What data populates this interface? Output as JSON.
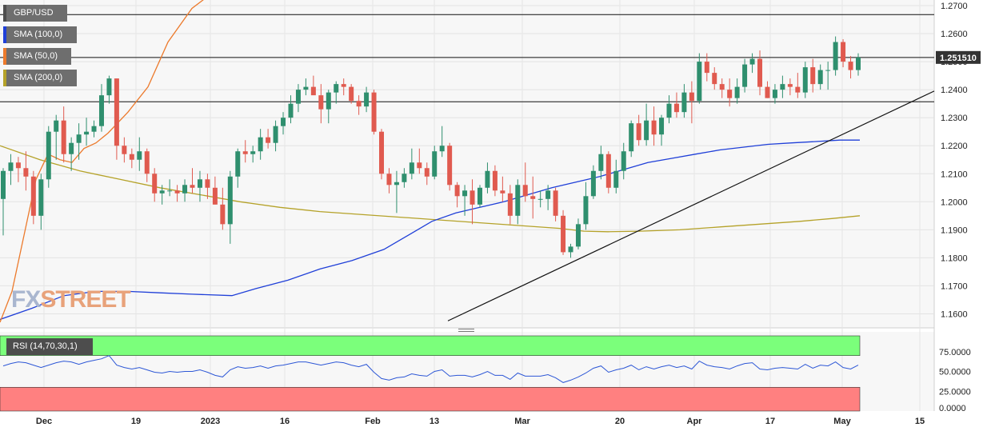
{
  "legend": {
    "symbol": "GBP/USD",
    "sma100": "SMA (100,0)",
    "sma50": "SMA (50,0)",
    "sma200": "SMA (200,0)",
    "rsi": "RSI (14,70,30,1)"
  },
  "colors": {
    "up": "#2f8f6e",
    "down": "#e05a4f",
    "sma50": "#ec7a2c",
    "sma100": "#1f3fd8",
    "sma200": "#b5a229",
    "rsi_line": "#2d57d6",
    "overbought_fill": "#7bff7b",
    "oversold_fill": "#ff8080",
    "price_tag": "#333333"
  },
  "logo": {
    "part1": "FX",
    "part2": "STREET"
  },
  "current_price": "1.251510",
  "chart_data": {
    "type": "candlestick",
    "ylim": [
      1.155,
      1.272
    ],
    "yticks": [
      "1.2700",
      "1.2600",
      "1.2500",
      "1.2400",
      "1.2300",
      "1.2200",
      "1.2100",
      "1.2000",
      "1.1900",
      "1.1800",
      "1.1700",
      "1.1600"
    ],
    "xticks": [
      "Dec",
      "19",
      "2023",
      "16",
      "Feb",
      "13",
      "Mar",
      "20",
      "Apr",
      "17",
      "May",
      "15"
    ],
    "horizontal_lines": [
      1.2668,
      1.2515,
      1.2357
    ],
    "trendline": {
      "from": [
        1.1575
      ],
      "to": [
        1.2395
      ]
    },
    "candles": [
      [
        1.201,
        1.212,
        1.188,
        1.211
      ],
      [
        1.211,
        1.217,
        1.206,
        1.214
      ],
      [
        1.214,
        1.216,
        1.207,
        1.212
      ],
      [
        1.212,
        1.218,
        1.204,
        1.209
      ],
      [
        1.209,
        1.211,
        1.192,
        1.195
      ],
      [
        1.195,
        1.21,
        1.19,
        1.208
      ],
      [
        1.208,
        1.227,
        1.205,
        1.225
      ],
      [
        1.225,
        1.231,
        1.215,
        1.229
      ],
      [
        1.229,
        1.234,
        1.214,
        1.217
      ],
      [
        1.217,
        1.223,
        1.211,
        1.221
      ],
      [
        1.221,
        1.228,
        1.215,
        1.224
      ],
      [
        1.224,
        1.23,
        1.22,
        1.225
      ],
      [
        1.225,
        1.229,
        1.223,
        1.227
      ],
      [
        1.227,
        1.242,
        1.225,
        1.238
      ],
      [
        1.238,
        1.245,
        1.235,
        1.244
      ],
      [
        1.244,
        1.244,
        1.215,
        1.22
      ],
      [
        1.22,
        1.223,
        1.214,
        1.217
      ],
      [
        1.217,
        1.219,
        1.212,
        1.215
      ],
      [
        1.215,
        1.223,
        1.211,
        1.218
      ],
      [
        1.218,
        1.219,
        1.207,
        1.21
      ],
      [
        1.21,
        1.212,
        1.2,
        1.203
      ],
      [
        1.203,
        1.206,
        1.199,
        1.204
      ],
      [
        1.204,
        1.208,
        1.202,
        1.204
      ],
      [
        1.204,
        1.206,
        1.2,
        1.203
      ],
      [
        1.203,
        1.208,
        1.2,
        1.206
      ],
      [
        1.206,
        1.212,
        1.203,
        1.205
      ],
      [
        1.205,
        1.211,
        1.2,
        1.208
      ],
      [
        1.208,
        1.21,
        1.201,
        1.205
      ],
      [
        1.205,
        1.209,
        1.199,
        1.199
      ],
      [
        1.199,
        1.205,
        1.19,
        1.192
      ],
      [
        1.192,
        1.211,
        1.185,
        1.209
      ],
      [
        1.209,
        1.219,
        1.205,
        1.218
      ],
      [
        1.218,
        1.222,
        1.214,
        1.217
      ],
      [
        1.217,
        1.22,
        1.214,
        1.218
      ],
      [
        1.218,
        1.226,
        1.215,
        1.223
      ],
      [
        1.223,
        1.226,
        1.219,
        1.221
      ],
      [
        1.221,
        1.229,
        1.218,
        1.227
      ],
      [
        1.227,
        1.232,
        1.224,
        1.23
      ],
      [
        1.23,
        1.238,
        1.228,
        1.235
      ],
      [
        1.235,
        1.242,
        1.232,
        1.24
      ],
      [
        1.24,
        1.244,
        1.238,
        1.241
      ],
      [
        1.241,
        1.245,
        1.239,
        1.238
      ],
      [
        1.238,
        1.242,
        1.228,
        1.233
      ],
      [
        1.233,
        1.24,
        1.228,
        1.239
      ],
      [
        1.239,
        1.243,
        1.235,
        1.242
      ],
      [
        1.242,
        1.244,
        1.238,
        1.241
      ],
      [
        1.241,
        1.242,
        1.235,
        1.236
      ],
      [
        1.236,
        1.238,
        1.231,
        1.234
      ],
      [
        1.234,
        1.241,
        1.232,
        1.239
      ],
      [
        1.239,
        1.24,
        1.224,
        1.225
      ],
      [
        1.225,
        1.226,
        1.208,
        1.21
      ],
      [
        1.21,
        1.212,
        1.203,
        1.206
      ],
      [
        1.206,
        1.211,
        1.196,
        1.207
      ],
      [
        1.207,
        1.212,
        1.205,
        1.21
      ],
      [
        1.21,
        1.219,
        1.208,
        1.214
      ],
      [
        1.214,
        1.219,
        1.21,
        1.212
      ],
      [
        1.212,
        1.214,
        1.206,
        1.209
      ],
      [
        1.209,
        1.22,
        1.208,
        1.218
      ],
      [
        1.218,
        1.227,
        1.216,
        1.22
      ],
      [
        1.22,
        1.221,
        1.204,
        1.206
      ],
      [
        1.206,
        1.207,
        1.198,
        1.202
      ],
      [
        1.202,
        1.206,
        1.195,
        1.204
      ],
      [
        1.204,
        1.208,
        1.192,
        1.199
      ],
      [
        1.199,
        1.206,
        1.198,
        1.205
      ],
      [
        1.205,
        1.214,
        1.203,
        1.211
      ],
      [
        1.211,
        1.213,
        1.202,
        1.204
      ],
      [
        1.204,
        1.209,
        1.2,
        1.203
      ],
      [
        1.203,
        1.206,
        1.192,
        1.195
      ],
      [
        1.195,
        1.208,
        1.192,
        1.206
      ],
      [
        1.206,
        1.214,
        1.2,
        1.202
      ],
      [
        1.202,
        1.209,
        1.194,
        1.201
      ],
      [
        1.201,
        1.204,
        1.198,
        1.201
      ],
      [
        1.201,
        1.206,
        1.197,
        1.204
      ],
      [
        1.204,
        1.205,
        1.193,
        1.195
      ],
      [
        1.195,
        1.197,
        1.181,
        1.182
      ],
      [
        1.182,
        1.185,
        1.18,
        1.184
      ],
      [
        1.184,
        1.194,
        1.183,
        1.192
      ],
      [
        1.192,
        1.207,
        1.19,
        1.202
      ],
      [
        1.202,
        1.213,
        1.201,
        1.211
      ],
      [
        1.211,
        1.22,
        1.208,
        1.217
      ],
      [
        1.217,
        1.218,
        1.203,
        1.205
      ],
      [
        1.205,
        1.215,
        1.203,
        1.211
      ],
      [
        1.211,
        1.221,
        1.208,
        1.218
      ],
      [
        1.218,
        1.229,
        1.216,
        1.228
      ],
      [
        1.228,
        1.231,
        1.22,
        1.222
      ],
      [
        1.222,
        1.235,
        1.22,
        1.229
      ],
      [
        1.229,
        1.234,
        1.22,
        1.224
      ],
      [
        1.224,
        1.231,
        1.22,
        1.23
      ],
      [
        1.23,
        1.238,
        1.228,
        1.235
      ],
      [
        1.235,
        1.239,
        1.23,
        1.232
      ],
      [
        1.232,
        1.242,
        1.23,
        1.239
      ],
      [
        1.239,
        1.243,
        1.228,
        1.236
      ],
      [
        1.236,
        1.253,
        1.235,
        1.25
      ],
      [
        1.25,
        1.253,
        1.243,
        1.246
      ],
      [
        1.246,
        1.248,
        1.24,
        1.242
      ],
      [
        1.242,
        1.244,
        1.237,
        1.24
      ],
      [
        1.24,
        1.244,
        1.234,
        1.237
      ],
      [
        1.237,
        1.244,
        1.235,
        1.241
      ],
      [
        1.241,
        1.251,
        1.239,
        1.249
      ],
      [
        1.249,
        1.253,
        1.246,
        1.251
      ],
      [
        1.251,
        1.254,
        1.238,
        1.241
      ],
      [
        1.241,
        1.243,
        1.237,
        1.237
      ],
      [
        1.237,
        1.242,
        1.235,
        1.24
      ],
      [
        1.24,
        1.245,
        1.237,
        1.242
      ],
      [
        1.242,
        1.244,
        1.238,
        1.241
      ],
      [
        1.241,
        1.246,
        1.237,
        1.239
      ],
      [
        1.239,
        1.25,
        1.237,
        1.248
      ],
      [
        1.248,
        1.251,
        1.239,
        1.242
      ],
      [
        1.242,
        1.249,
        1.24,
        1.247
      ],
      [
        1.247,
        1.25,
        1.24,
        1.247
      ],
      [
        1.247,
        1.259,
        1.245,
        1.257
      ],
      [
        1.257,
        1.258,
        1.248,
        1.25
      ],
      [
        1.25,
        1.252,
        1.244,
        1.247
      ],
      [
        1.247,
        1.253,
        1.245,
        1.2515
      ]
    ],
    "sma50": [
      [
        0,
        1.157
      ],
      [
        15,
        1.168
      ],
      [
        30,
        1.188
      ],
      [
        45,
        1.208
      ],
      [
        60,
        1.217
      ],
      [
        75,
        1.215
      ],
      [
        90,
        1.214
      ],
      [
        105,
        1.219
      ],
      [
        120,
        1.221
      ],
      [
        135,
        1.2245
      ],
      [
        160,
        1.232
      ],
      [
        185,
        1.241
      ],
      [
        210,
        1.257
      ],
      [
        240,
        1.269
      ],
      [
        270,
        1.2755
      ],
      [
        300,
        1.281
      ],
      [
        330,
        1.287
      ],
      [
        360,
        1.293
      ],
      [
        380,
        1.2965
      ],
      [
        410,
        1.3035
      ],
      [
        440,
        1.3105
      ],
      [
        470,
        1.316
      ],
      [
        500,
        1.319
      ],
      [
        530,
        1.321
      ],
      [
        560,
        1.324
      ],
      [
        590,
        1.3265
      ],
      [
        620,
        1.328
      ],
      [
        650,
        1.329
      ],
      [
        680,
        1.33
      ],
      [
        710,
        1.331
      ],
      [
        740,
        1.333
      ],
      [
        770,
        1.3335
      ],
      [
        800,
        1.335
      ],
      [
        830,
        1.336
      ],
      [
        860,
        1.3375
      ],
      [
        890,
        1.34
      ],
      [
        920,
        1.3425
      ],
      [
        950,
        1.345
      ],
      [
        980,
        1.348
      ],
      [
        1010,
        1.356
      ],
      [
        1040,
        1.362
      ],
      [
        1060,
        1.368
      ],
      [
        1075,
        1.3715
      ]
    ],
    "sma100": [
      [
        0,
        1.158
      ],
      [
        40,
        1.162
      ],
      [
        80,
        1.1665
      ],
      [
        120,
        1.168
      ],
      [
        160,
        1.168
      ],
      [
        200,
        1.1675
      ],
      [
        240,
        1.167
      ],
      [
        290,
        1.1665
      ],
      [
        320,
        1.169
      ],
      [
        360,
        1.172
      ],
      [
        400,
        1.176
      ],
      [
        440,
        1.179
      ],
      [
        480,
        1.183
      ],
      [
        510,
        1.188
      ],
      [
        540,
        1.193
      ],
      [
        570,
        1.196
      ],
      [
        600,
        1.198
      ],
      [
        630,
        1.2
      ],
      [
        660,
        1.2025
      ],
      [
        690,
        1.205
      ],
      [
        720,
        1.207
      ],
      [
        750,
        1.209
      ],
      [
        780,
        1.2115
      ],
      [
        810,
        1.214
      ],
      [
        840,
        1.2155
      ],
      [
        870,
        1.217
      ],
      [
        900,
        1.2185
      ],
      [
        930,
        1.2195
      ],
      [
        960,
        1.2205
      ],
      [
        990,
        1.221
      ],
      [
        1020,
        1.2215
      ],
      [
        1050,
        1.222
      ],
      [
        1075,
        1.222
      ]
    ],
    "sma200": [
      [
        0,
        1.22
      ],
      [
        50,
        1.215
      ],
      [
        100,
        1.211
      ],
      [
        150,
        1.208
      ],
      [
        200,
        1.205
      ],
      [
        250,
        1.2025
      ],
      [
        300,
        1.2
      ],
      [
        350,
        1.198
      ],
      [
        400,
        1.1965
      ],
      [
        450,
        1.1955
      ],
      [
        500,
        1.1945
      ],
      [
        550,
        1.1935
      ],
      [
        600,
        1.1925
      ],
      [
        650,
        1.1915
      ],
      [
        700,
        1.1905
      ],
      [
        730,
        1.1895
      ],
      [
        760,
        1.1893
      ],
      [
        800,
        1.1895
      ],
      [
        850,
        1.19
      ],
      [
        900,
        1.191
      ],
      [
        950,
        1.192
      ],
      [
        1000,
        1.193
      ],
      [
        1040,
        1.194
      ],
      [
        1075,
        1.195
      ]
    ],
    "rsi": {
      "ylim": [
        0,
        100
      ],
      "yticks": [
        "75.0000",
        "50.0000",
        "25.0000",
        "0.0000"
      ],
      "overbought": 70,
      "oversold": 30,
      "values": [
        57,
        60,
        62,
        61,
        58,
        55,
        58,
        61,
        63,
        62,
        59,
        62,
        64,
        66,
        70,
        58,
        55,
        53,
        55,
        52,
        49,
        48,
        50,
        49,
        50,
        50,
        52,
        49,
        45,
        43,
        52,
        56,
        54,
        55,
        57,
        54,
        57,
        58,
        60,
        62,
        62,
        60,
        58,
        60,
        62,
        61,
        58,
        56,
        59,
        49,
        41,
        39,
        42,
        43,
        47,
        45,
        44,
        50,
        52,
        44,
        45,
        45,
        43,
        46,
        50,
        45,
        45,
        40,
        48,
        44,
        44,
        44,
        46,
        42,
        36,
        39,
        43,
        48,
        54,
        57,
        49,
        52,
        54,
        58,
        52,
        56,
        53,
        56,
        58,
        55,
        57,
        53,
        63,
        58,
        56,
        55,
        53,
        57,
        60,
        61,
        53,
        52,
        54,
        55,
        54,
        53,
        59,
        54,
        58,
        57,
        62,
        55,
        53,
        58
      ]
    }
  }
}
